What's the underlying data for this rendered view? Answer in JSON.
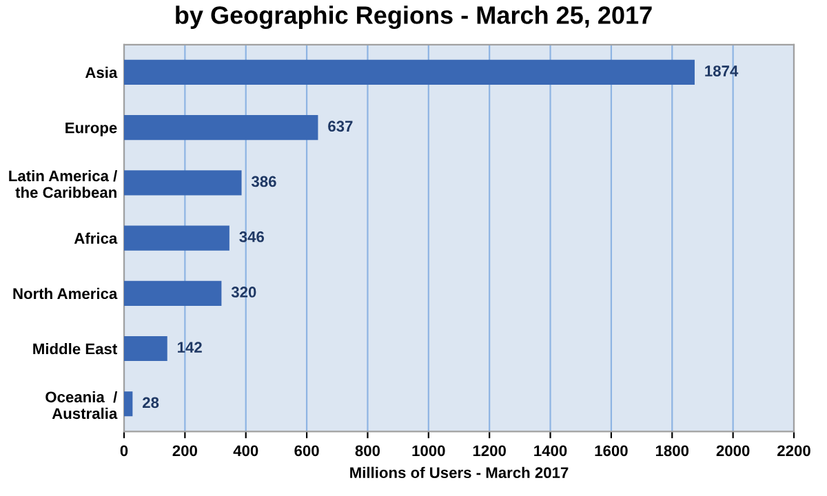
{
  "chart_data": {
    "type": "bar",
    "orientation": "horizontal",
    "title": "by Geographic Regions - March 25, 2017",
    "xlabel": "Millions of Users - March 2017",
    "categories": [
      "Asia",
      "Europe",
      "Latin America /\nthe Caribbean",
      "Africa",
      "North America",
      "Middle East",
      "Oceania  /\nAustralia"
    ],
    "values": [
      1874,
      637,
      386,
      346,
      320,
      142,
      28
    ],
    "color": "#3a68b4",
    "data_labels": true,
    "xlim": [
      0,
      2200
    ],
    "xticks": [
      0,
      200,
      400,
      600,
      800,
      1000,
      1200,
      1400,
      1600,
      1800,
      2000,
      2200
    ],
    "grid": "x"
  }
}
